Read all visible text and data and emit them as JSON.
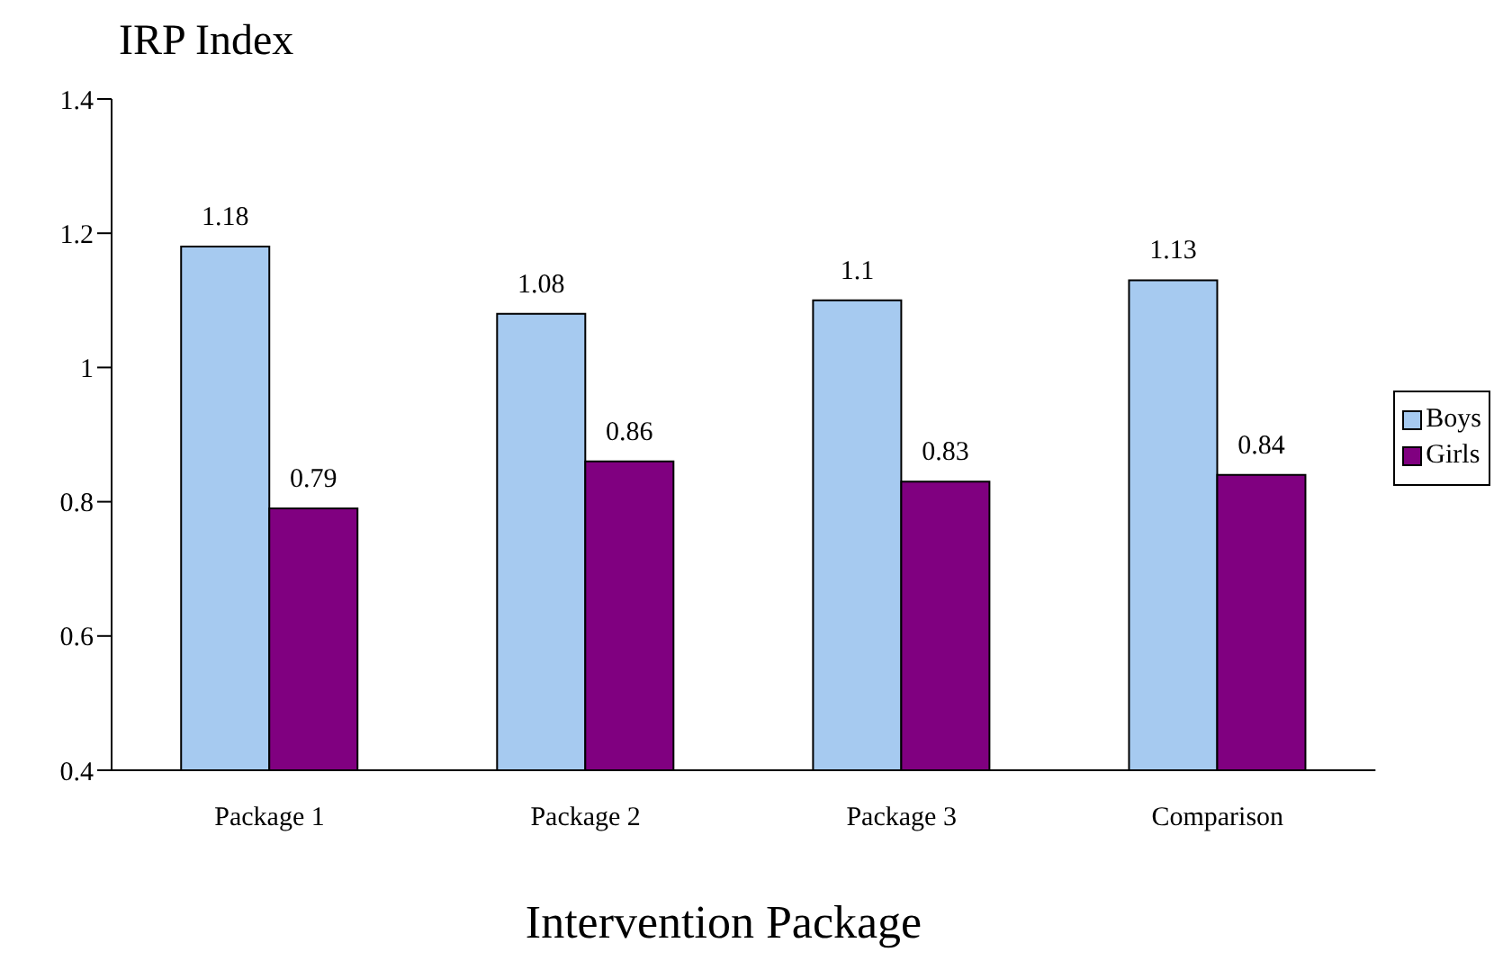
{
  "chart_data": {
    "type": "bar",
    "ylabel": "IRP Index",
    "xlabel": "Intervention Package",
    "categories": [
      "Package 1",
      "Package 2",
      "Package 3",
      "Comparison"
    ],
    "series": [
      {
        "name": "Boys",
        "color": "#a6caf0",
        "values": [
          1.18,
          1.08,
          1.1,
          1.13
        ]
      },
      {
        "name": "Girls",
        "color": "#800080",
        "values": [
          0.79,
          0.86,
          0.83,
          0.84
        ]
      }
    ],
    "ylim": [
      0.4,
      1.4
    ],
    "yticks": [
      0.4,
      0.6,
      0.8,
      1,
      1.2,
      1.4
    ],
    "grid": false,
    "legend": "right",
    "data_labels": true
  }
}
